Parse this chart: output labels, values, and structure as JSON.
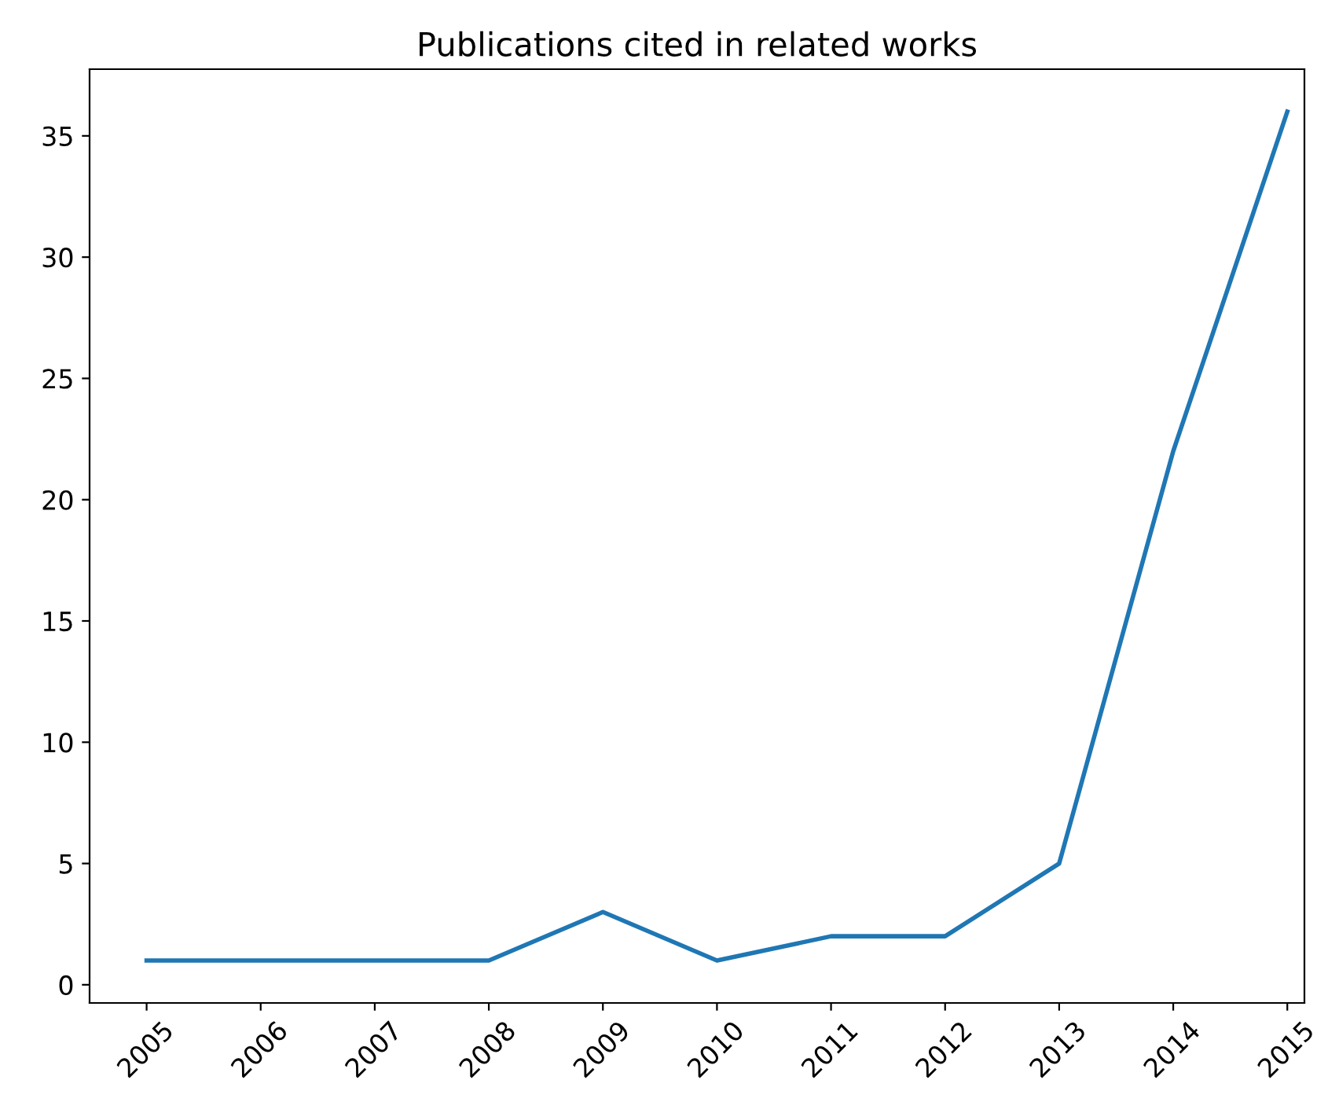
{
  "chart_data": {
    "type": "line",
    "title": "Publications cited in related works",
    "categories": [
      "2005",
      "2006",
      "2007",
      "2008",
      "2009",
      "2010",
      "2011",
      "2012",
      "2013",
      "2014",
      "2015"
    ],
    "series": [
      {
        "color": "#1f77b4",
        "values": [
          1,
          1,
          1,
          1,
          3,
          1,
          2,
          2,
          5,
          22,
          36
        ]
      }
    ],
    "ylim": [
      -0.75,
      37.75
    ],
    "yticks": [
      0,
      5,
      10,
      15,
      20,
      25,
      30,
      35
    ],
    "marker": "none",
    "line_style": "solid"
  }
}
